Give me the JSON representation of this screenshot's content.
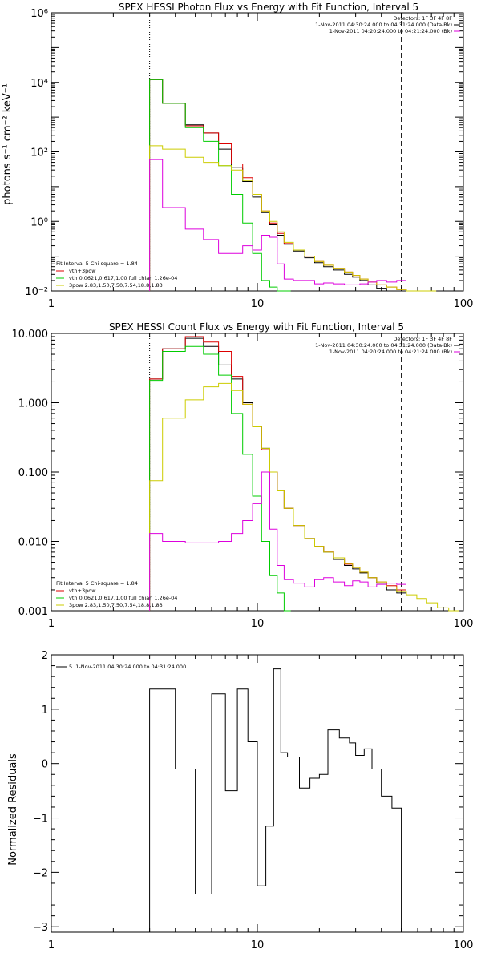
{
  "chart_data": [
    {
      "type": "line",
      "title": "SPEX HESSI Photon Flux vs Energy with Fit Function, Interval 5",
      "xlabel": "",
      "ylabel": "photons s⁻¹ cm⁻² keV⁻¹",
      "x_scale": "log",
      "y_scale": "log",
      "xlim": [
        1,
        100
      ],
      "ylim": [
        0.01,
        1000000
      ],
      "x_ticks": [
        {
          "value": 1,
          "label": "1"
        },
        {
          "value": 10,
          "label": "10"
        },
        {
          "value": 100,
          "label": "100"
        }
      ],
      "y_ticks": [
        {
          "value": 0.01,
          "label": "10⁻²"
        },
        {
          "value": 1,
          "label": "10⁰"
        },
        {
          "value": 100,
          "label": "10²"
        },
        {
          "value": 10000,
          "label": "10⁴"
        },
        {
          "value": 1000000,
          "label": "10⁶"
        }
      ],
      "vlines": [
        {
          "x": 3.0,
          "style": "dotted"
        },
        {
          "x": 50,
          "style": "dashed"
        }
      ],
      "info": [
        "Detectors: 1F 3F 4F 8F",
        "1-Nov-2011 04:30:24.000 to 04:31:24.000 (Data-Bk)",
        "1-Nov-2011 04:20:24.000 to 04:21:24.000 (Bk)"
      ],
      "legend": [
        "Fit Interval 5   Chi-square = 1.84",
        "vth+3pow",
        "vth 0.0621,0.617,1.00  full chian 1.26e-04",
        "3pow 2.83,1.50,7.50,7.54,18.8,1.83"
      ],
      "series": [
        {
          "name": "",
          "color": "#000000",
          "x": [
            3,
            4,
            5,
            6,
            7,
            8,
            9,
            10,
            11,
            12,
            13,
            14,
            16,
            18,
            20,
            22,
            25,
            28,
            30,
            33,
            36,
            40,
            45,
            50
          ],
          "y": [
            12000,
            2500,
            600,
            350,
            120,
            35,
            14,
            5,
            1.8,
            0.8,
            0.4,
            0.22,
            0.14,
            0.09,
            0.065,
            0.05,
            0.04,
            0.03,
            0.025,
            0.02,
            0.015,
            0.012,
            0.01,
            0.008
          ]
        },
        {
          "name": "",
          "color": "#dd0000",
          "x": [
            3,
            4,
            5,
            6,
            7,
            8,
            9,
            10,
            11,
            12,
            13,
            14,
            16,
            18,
            20,
            22,
            25,
            28,
            30,
            33,
            36,
            40,
            45,
            50,
            56,
            63,
            70
          ],
          "y": [
            12000,
            2500,
            560,
            350,
            170,
            45,
            18,
            6,
            2,
            0.9,
            0.45,
            0.23,
            0.15,
            0.1,
            0.07,
            0.055,
            0.045,
            0.035,
            0.028,
            0.022,
            0.018,
            0.015,
            0.013,
            0.011,
            0.009,
            0.008,
            0.007
          ]
        },
        {
          "name": "",
          "color": "#00cc00",
          "x": [
            3,
            4,
            5,
            6,
            7,
            8,
            9,
            10,
            11,
            12,
            13,
            14
          ],
          "y": [
            12000,
            2500,
            500,
            200,
            40,
            6,
            0.9,
            0.12,
            0.02,
            0.013,
            0.01,
            0.005
          ]
        },
        {
          "name": "",
          "color": "#cccc00",
          "x": [
            3,
            4,
            5,
            6,
            7,
            8,
            9,
            10,
            11,
            12,
            13,
            14,
            16,
            18,
            20,
            22,
            25,
            28,
            30,
            33,
            36,
            40,
            45,
            50,
            56,
            63,
            70
          ],
          "y": [
            150,
            120,
            70,
            50,
            40,
            30,
            15,
            6,
            2,
            1,
            0.5,
            0.25,
            0.15,
            0.1,
            0.07,
            0.055,
            0.045,
            0.035,
            0.028,
            0.022,
            0.018,
            0.015,
            0.013,
            0.011,
            0.009,
            0.008,
            0.007
          ]
        },
        {
          "name": "",
          "color": "#dd00dd",
          "x": [
            3,
            4,
            5,
            6,
            7,
            8,
            9,
            10,
            11,
            12,
            13,
            14,
            16,
            18,
            20,
            22,
            25,
            28,
            30,
            33,
            36,
            40,
            45,
            50
          ],
          "y": [
            60,
            2.5,
            0.6,
            0.3,
            0.12,
            0.12,
            0.2,
            0.15,
            0.4,
            0.35,
            0.06,
            0.022,
            0.02,
            0.02,
            0.016,
            0.017,
            0.016,
            0.015,
            0.015,
            0.016,
            0.018,
            0.02,
            0.018,
            0.02
          ]
        }
      ]
    },
    {
      "type": "line",
      "title": "SPEX HESSI Count Flux vs Energy with Fit Function, Interval 5",
      "xlabel": "",
      "ylabel": "",
      "x_scale": "log",
      "y_scale": "log",
      "xlim": [
        1,
        100
      ],
      "ylim": [
        0.001,
        10
      ],
      "x_ticks": [
        {
          "value": 1,
          "label": "1"
        },
        {
          "value": 10,
          "label": "10"
        },
        {
          "value": 100,
          "label": "100"
        }
      ],
      "y_ticks": [
        {
          "value": 0.001,
          "label": "0.001"
        },
        {
          "value": 0.01,
          "label": "0.010"
        },
        {
          "value": 0.1,
          "label": "0.100"
        },
        {
          "value": 1,
          "label": "1.000"
        },
        {
          "value": 10,
          "label": "10.000"
        }
      ],
      "vlines": [
        {
          "x": 3.0,
          "style": "dotted"
        },
        {
          "x": 50,
          "style": "dashed"
        }
      ],
      "info": [
        "Detectors: 1F 3F 4F 8F",
        "1-Nov-2011 04:30:24.000 to 04:31:24.000 (Data-Bk)",
        "1-Nov-2011 04:20:24.000 to 04:21:24.000 (Bk)"
      ],
      "legend": [
        "Fit Interval 5   Chi-square = 1.84",
        "vth+3pow",
        "vth 0.0621,0.617,1.00  full chian 1.26e-04",
        "3pow 2.83,1.50,7.50,7.54,18.8,1.83"
      ],
      "series": [
        {
          "name": "",
          "color": "#000000",
          "x": [
            3,
            4,
            5,
            6,
            7,
            8,
            9,
            10,
            11,
            12,
            13,
            14,
            16,
            18,
            20,
            22,
            25,
            28,
            30,
            33,
            36,
            40,
            45,
            50
          ],
          "y": [
            2.2,
            6,
            8.5,
            6.5,
            3.5,
            2.2,
            1,
            0.45,
            0.22,
            0.1,
            0.055,
            0.03,
            0.017,
            0.011,
            0.0085,
            0.007,
            0.0055,
            0.0045,
            0.004,
            0.0035,
            0.003,
            0.0025,
            0.002,
            0.0018
          ]
        },
        {
          "name": "",
          "color": "#dd0000",
          "x": [
            3,
            4,
            5,
            6,
            7,
            8,
            9,
            10,
            11,
            12,
            13,
            14,
            16,
            18,
            20,
            22,
            25,
            28,
            30,
            33,
            36,
            40,
            45,
            50
          ],
          "y": [
            2.2,
            6,
            9,
            7.5,
            5.5,
            2.4,
            0.95,
            0.45,
            0.21,
            0.1,
            0.055,
            0.03,
            0.017,
            0.011,
            0.0085,
            0.0072,
            0.0058,
            0.0047,
            0.0042,
            0.0036,
            0.003,
            0.0026,
            0.0023,
            0.002
          ]
        },
        {
          "name": "",
          "color": "#00cc00",
          "x": [
            3,
            4,
            5,
            6,
            7,
            8,
            9,
            10,
            11,
            12,
            13,
            14
          ],
          "y": [
            2.1,
            5.5,
            6.5,
            5,
            2.5,
            0.7,
            0.18,
            0.045,
            0.01,
            0.0032,
            0.0018,
            0.001
          ]
        },
        {
          "name": "",
          "color": "#cccc00",
          "x": [
            3,
            4,
            5,
            6,
            7,
            8,
            9,
            10,
            11,
            12,
            13,
            14,
            16,
            18,
            20,
            22,
            25,
            28,
            30,
            33,
            36,
            40,
            45,
            50,
            56,
            63,
            70,
            80,
            90
          ],
          "y": [
            0.075,
            0.6,
            1.1,
            1.7,
            1.9,
            1.5,
            0.95,
            0.45,
            0.22,
            0.1,
            0.055,
            0.03,
            0.017,
            0.011,
            0.0085,
            0.007,
            0.0058,
            0.0048,
            0.0042,
            0.0036,
            0.003,
            0.0026,
            0.0022,
            0.0019,
            0.0017,
            0.0015,
            0.0013,
            0.0011,
            0.001
          ]
        },
        {
          "name": "",
          "color": "#dd00dd",
          "x": [
            3,
            4,
            5,
            6,
            7,
            8,
            9,
            10,
            11,
            12,
            13,
            14,
            16,
            18,
            20,
            22,
            25,
            28,
            30,
            33,
            36,
            40,
            45,
            50
          ],
          "y": [
            0.013,
            0.01,
            0.0095,
            0.0095,
            0.01,
            0.013,
            0.02,
            0.035,
            0.1,
            0.015,
            0.0045,
            0.0028,
            0.0025,
            0.0022,
            0.0028,
            0.003,
            0.0026,
            0.0023,
            0.0027,
            0.0026,
            0.0022,
            0.0024,
            0.0025,
            0.0024
          ]
        }
      ]
    },
    {
      "type": "line",
      "title": "",
      "xlabel": "",
      "ylabel": "Normalized Residuals",
      "x_scale": "log",
      "y_scale": "linear",
      "xlim": [
        1,
        100
      ],
      "ylim": [
        -3.1,
        2
      ],
      "x_ticks": [
        {
          "value": 1,
          "label": "1"
        },
        {
          "value": 10,
          "label": "10"
        },
        {
          "value": 100,
          "label": "100"
        }
      ],
      "y_ticks": [
        {
          "value": -3,
          "label": "−3"
        },
        {
          "value": -2,
          "label": "−2"
        },
        {
          "value": -1,
          "label": "−1"
        },
        {
          "value": 0,
          "label": "0"
        },
        {
          "value": 1,
          "label": "1"
        },
        {
          "value": 2,
          "label": "2"
        }
      ],
      "legend": [
        "5.  1-Nov-2011 04:30:24.000 to 04:31:24.000"
      ],
      "series": [
        {
          "name": "5.  1-Nov-2011 04:30:24.000 to 04:31:24.000",
          "color": "#000000",
          "edges": [
            3,
            4,
            5,
            6,
            7,
            8,
            9,
            10,
            11,
            12,
            13,
            14,
            16,
            18,
            20,
            22,
            25,
            28,
            30,
            33,
            36,
            40,
            45,
            50
          ],
          "values": [
            1.37,
            -0.1,
            -2.4,
            1.28,
            -0.5,
            1.37,
            0.4,
            -2.25,
            -1.15,
            1.74,
            0.2,
            0.12,
            -0.45,
            -0.27,
            -0.2,
            0.62,
            0.47,
            0.38,
            0.15,
            0.27,
            -0.1,
            -0.6,
            -0.82
          ]
        }
      ]
    }
  ]
}
